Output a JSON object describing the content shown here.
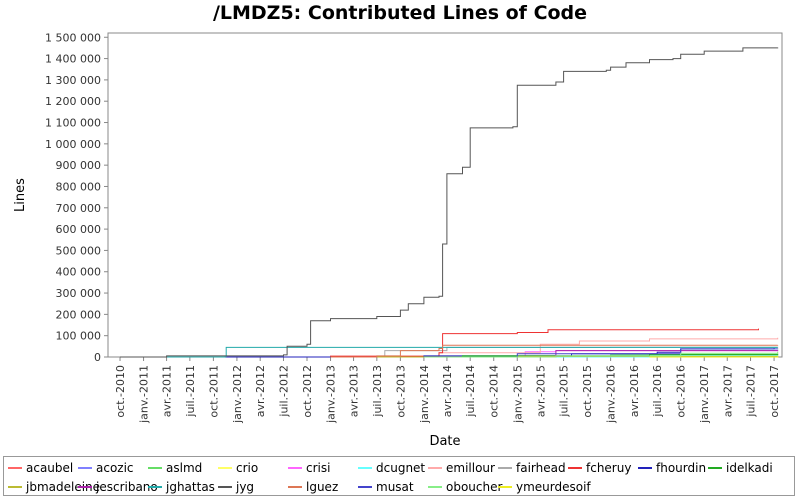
{
  "chart_data": {
    "type": "line",
    "title": "/LMDZ5: Contributed Lines of Code",
    "xlabel": "Date",
    "ylabel": "Lines",
    "ylim": [
      0,
      1520000
    ],
    "xlim": [
      "2010-08-15",
      "2017-11-01"
    ],
    "grid": false,
    "legend_position": "bottom",
    "y_ticks": [
      {
        "value": 0,
        "label": "0"
      },
      {
        "value": 100000,
        "label": "100 000"
      },
      {
        "value": 200000,
        "label": "200 000"
      },
      {
        "value": 300000,
        "label": "300 000"
      },
      {
        "value": 400000,
        "label": "400 000"
      },
      {
        "value": 500000,
        "label": "500 000"
      },
      {
        "value": 600000,
        "label": "600 000"
      },
      {
        "value": 700000,
        "label": "700 000"
      },
      {
        "value": 800000,
        "label": "800 000"
      },
      {
        "value": 900000,
        "label": "900 000"
      },
      {
        "value": 1000000,
        "label": "1 000 000"
      },
      {
        "value": 1100000,
        "label": "1 100 000"
      },
      {
        "value": 1200000,
        "label": "1 200 000"
      },
      {
        "value": 1300000,
        "label": "1 300 000"
      },
      {
        "value": 1400000,
        "label": "1 400 000"
      },
      {
        "value": 1500000,
        "label": "1 500 000"
      }
    ],
    "x_ticks": [
      {
        "date": "2010-10-01",
        "label": "oct.-2010"
      },
      {
        "date": "2011-01-01",
        "label": "janv.-2011"
      },
      {
        "date": "2011-04-01",
        "label": "avr.-2011"
      },
      {
        "date": "2011-07-01",
        "label": "juil.-2011"
      },
      {
        "date": "2011-10-01",
        "label": "oct.-2011"
      },
      {
        "date": "2012-01-01",
        "label": "janv.-2012"
      },
      {
        "date": "2012-04-01",
        "label": "avr.-2012"
      },
      {
        "date": "2012-07-01",
        "label": "juil.-2012"
      },
      {
        "date": "2012-10-01",
        "label": "oct.-2012"
      },
      {
        "date": "2013-01-01",
        "label": "janv.-2013"
      },
      {
        "date": "2013-04-01",
        "label": "avr.-2013"
      },
      {
        "date": "2013-07-01",
        "label": "juil.-2013"
      },
      {
        "date": "2013-10-01",
        "label": "oct.-2013"
      },
      {
        "date": "2014-01-01",
        "label": "janv.-2014"
      },
      {
        "date": "2014-04-01",
        "label": "avr.-2014"
      },
      {
        "date": "2014-07-01",
        "label": "juil.-2014"
      },
      {
        "date": "2014-10-01",
        "label": "oct.-2014"
      },
      {
        "date": "2015-01-01",
        "label": "janv.-2015"
      },
      {
        "date": "2015-04-01",
        "label": "avr.-2015"
      },
      {
        "date": "2015-07-01",
        "label": "juil.-2015"
      },
      {
        "date": "2015-10-01",
        "label": "oct.-2015"
      },
      {
        "date": "2016-01-01",
        "label": "janv.-2016"
      },
      {
        "date": "2016-04-01",
        "label": "avr.-2016"
      },
      {
        "date": "2016-07-01",
        "label": "juil.-2016"
      },
      {
        "date": "2016-10-01",
        "label": "oct.-2016"
      },
      {
        "date": "2017-01-01",
        "label": "janv.-2017"
      },
      {
        "date": "2017-04-01",
        "label": "avr.-2017"
      },
      {
        "date": "2017-07-01",
        "label": "juil.-2017"
      },
      {
        "date": "2017-10-01",
        "label": "oct.-2017"
      }
    ],
    "series": [
      {
        "name": "acaubel",
        "color": "#ff6666",
        "points": [
          [
            "2013-06-01",
            0
          ],
          [
            "2013-09-01",
            2000
          ],
          [
            "2015-01-01",
            3000
          ],
          [
            "2017-10-15",
            4000
          ]
        ]
      },
      {
        "name": "acozic",
        "color": "#8080ff",
        "points": [
          [
            "2014-02-01",
            0
          ],
          [
            "2015-03-01",
            1500
          ],
          [
            "2017-10-15",
            2000
          ]
        ]
      },
      {
        "name": "aslmd",
        "color": "#66dd66",
        "points": [
          [
            "2013-09-01",
            0
          ],
          [
            "2014-06-01",
            5000
          ],
          [
            "2016-01-01",
            10000
          ],
          [
            "2017-10-15",
            14000
          ]
        ]
      },
      {
        "name": "crio",
        "color": "#ffff66",
        "points": [
          [
            "2016-01-01",
            0
          ],
          [
            "2017-10-15",
            2000
          ]
        ]
      },
      {
        "name": "crisi",
        "color": "#ff66ff",
        "points": [
          [
            "2014-03-01",
            0
          ],
          [
            "2015-02-01",
            25000
          ],
          [
            "2015-06-01",
            30000
          ],
          [
            "2017-10-15",
            32000
          ]
        ]
      },
      {
        "name": "dcugnet",
        "color": "#66ffff",
        "points": [
          [
            "2015-06-01",
            0
          ],
          [
            "2016-06-01",
            5000
          ],
          [
            "2017-10-15",
            8000
          ]
        ]
      },
      {
        "name": "emillour",
        "color": "#ffaaaa",
        "points": [
          [
            "2013-01-01",
            0
          ],
          [
            "2014-03-01",
            20000
          ],
          [
            "2015-04-01",
            60000
          ],
          [
            "2015-09-01",
            75000
          ],
          [
            "2016-06-01",
            85000
          ],
          [
            "2017-10-15",
            90000
          ]
        ]
      },
      {
        "name": "fairhead",
        "color": "#aaaaaa",
        "points": [
          [
            "2012-01-01",
            0
          ],
          [
            "2013-08-01",
            30000
          ],
          [
            "2014-04-01",
            45000
          ],
          [
            "2016-01-01",
            46000
          ],
          [
            "2017-10-15",
            48000
          ]
        ]
      },
      {
        "name": "fcheruy",
        "color": "#ee3333",
        "points": [
          [
            "2011-01-01",
            0
          ],
          [
            "2013-01-01",
            4000
          ],
          [
            "2014-03-01",
            20000
          ],
          [
            "2014-03-15",
            110000
          ],
          [
            "2015-01-01",
            115000
          ],
          [
            "2015-05-01",
            128000
          ],
          [
            "2017-08-01",
            133000
          ]
        ]
      },
      {
        "name": "fhourdin",
        "color": "#2222bb",
        "points": [
          [
            "2011-01-01",
            0
          ],
          [
            "2014-01-01",
            5000
          ],
          [
            "2015-08-01",
            15000
          ],
          [
            "2016-07-01",
            22000
          ],
          [
            "2016-10-01",
            38000
          ],
          [
            "2017-10-01",
            42000
          ]
        ]
      },
      {
        "name": "idelkadi",
        "color": "#22aa22",
        "points": [
          [
            "2013-06-01",
            0
          ],
          [
            "2014-06-01",
            5000
          ],
          [
            "2016-06-01",
            12000
          ],
          [
            "2017-10-15",
            15000
          ]
        ]
      },
      {
        "name": "jbmadeleine",
        "color": "#bbbb33",
        "points": [
          [
            "2013-01-01",
            0
          ],
          [
            "2015-01-01",
            3000
          ],
          [
            "2017-10-15",
            6000
          ]
        ]
      },
      {
        "name": "jescribano",
        "color": "#aa22aa",
        "points": [
          [
            "2015-01-01",
            0
          ],
          [
            "2015-06-01",
            30000
          ],
          [
            "2017-10-15",
            32000
          ]
        ]
      },
      {
        "name": "jghattas",
        "color": "#22aaaa",
        "points": [
          [
            "2011-01-01",
            0
          ],
          [
            "2011-11-15",
            2000
          ],
          [
            "2011-11-20",
            45000
          ],
          [
            "2017-10-15",
            45000
          ]
        ]
      },
      {
        "name": "jyg",
        "color": "#555555",
        "points": [
          [
            "2010-10-01",
            0
          ],
          [
            "2011-04-01",
            5000
          ],
          [
            "2012-07-01",
            10000
          ],
          [
            "2012-07-15",
            50000
          ],
          [
            "2012-10-01",
            60000
          ],
          [
            "2012-10-15",
            170000
          ],
          [
            "2013-01-01",
            180000
          ],
          [
            "2013-07-01",
            190000
          ],
          [
            "2013-10-01",
            220000
          ],
          [
            "2013-11-01",
            250000
          ],
          [
            "2014-01-01",
            280000
          ],
          [
            "2014-03-01",
            285000
          ],
          [
            "2014-03-15",
            530000
          ],
          [
            "2014-04-01",
            860000
          ],
          [
            "2014-06-01",
            890000
          ],
          [
            "2014-07-01",
            1075000
          ],
          [
            "2014-12-15",
            1080000
          ],
          [
            "2015-01-01",
            1275000
          ],
          [
            "2015-06-01",
            1290000
          ],
          [
            "2015-07-01",
            1340000
          ],
          [
            "2015-12-15",
            1345000
          ],
          [
            "2016-01-01",
            1360000
          ],
          [
            "2016-03-01",
            1380000
          ],
          [
            "2016-06-01",
            1395000
          ],
          [
            "2016-09-01",
            1400000
          ],
          [
            "2016-10-01",
            1420000
          ],
          [
            "2017-01-01",
            1435000
          ],
          [
            "2017-06-01",
            1450000
          ],
          [
            "2017-10-15",
            1452000
          ]
        ]
      },
      {
        "name": "lguez",
        "color": "#dd7755",
        "points": [
          [
            "2013-01-01",
            0
          ],
          [
            "2013-07-01",
            5000
          ],
          [
            "2013-10-01",
            30000
          ],
          [
            "2014-03-01",
            40000
          ],
          [
            "2014-03-15",
            55000
          ],
          [
            "2017-10-15",
            56000
          ]
        ]
      },
      {
        "name": "musat",
        "color": "#4444cc",
        "points": [
          [
            "2014-03-01",
            0
          ],
          [
            "2015-01-01",
            15000
          ],
          [
            "2016-10-01",
            38000
          ],
          [
            "2017-10-15",
            40000
          ]
        ]
      },
      {
        "name": "oboucher",
        "color": "#88ee88",
        "points": [
          [
            "2014-01-01",
            0
          ],
          [
            "2015-06-01",
            5000
          ],
          [
            "2016-10-01",
            18000
          ],
          [
            "2017-10-15",
            25000
          ]
        ]
      },
      {
        "name": "ymeurdesoif",
        "color": "#eeee22",
        "points": [
          [
            "2016-06-01",
            0
          ],
          [
            "2017-10-15",
            5000
          ]
        ]
      }
    ]
  }
}
